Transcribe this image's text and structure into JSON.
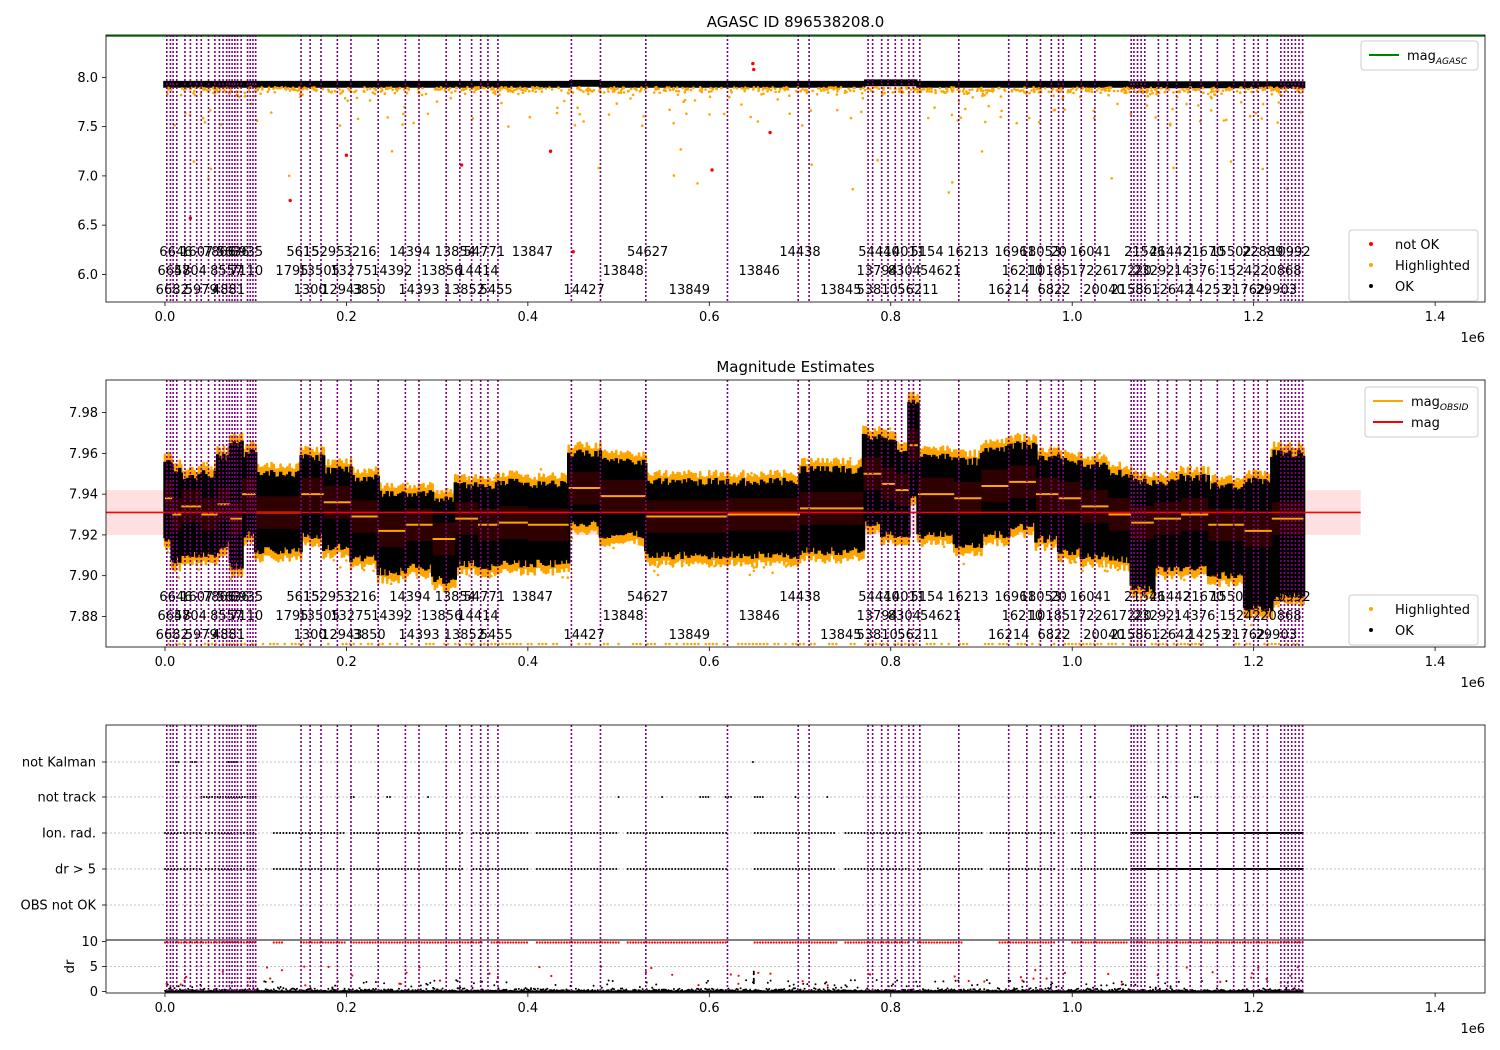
{
  "chart_data": [
    {
      "type": "scatter",
      "title": "AGASC ID 896538208.0",
      "xlim": [
        -65000,
        1455000
      ],
      "ylim": [
        5.72,
        8.43
      ],
      "x_ticks": [
        0.0,
        0.2,
        0.4,
        0.6,
        0.8,
        1.0,
        1.2,
        1.4
      ],
      "x_tick_labels": [
        "0.0",
        "0.2",
        "0.4",
        "0.6",
        "0.8",
        "1.0",
        "1.2",
        "1.4"
      ],
      "x_offset_text": "1e6",
      "y_ticks": [
        6.0,
        6.5,
        7.0,
        7.5,
        8.0
      ],
      "y_tick_labels": [
        "6.0",
        "6.5",
        "7.0",
        "7.5",
        "8.0"
      ],
      "legend_upper": {
        "placement": "top-right",
        "entries": [
          {
            "label": "mag",
            "sub": "AGASC",
            "color": "#008000"
          }
        ]
      },
      "legend_lower": {
        "placement": "bottom-right",
        "entries": [
          {
            "label": "not OK",
            "color": "#ff0000"
          },
          {
            "label": "Highlighted",
            "color": "#ffa500"
          },
          {
            "label": "OK",
            "color": "#000000"
          }
        ]
      },
      "series": [
        {
          "name": "mag_AGASC",
          "type": "line",
          "color": "#008000",
          "x": [
            -65000,
            1455000
          ],
          "y": [
            8.42,
            8.42
          ]
        },
        {
          "name": "OK",
          "type": "band",
          "color": "#000000",
          "x_range": [
            0,
            1255000
          ],
          "y_center": 7.93
        },
        {
          "name": "Highlighted",
          "color": "#ffa500",
          "x_range": [
            0,
            1255000
          ]
        },
        {
          "name": "not OK",
          "color": "#ff0000",
          "points": [
            [
              28000,
              6.57
            ],
            [
              138000,
              6.75
            ],
            [
              200000,
              7.21
            ],
            [
              327000,
              7.11
            ],
            [
              425000,
              7.25
            ],
            [
              450000,
              6.23
            ],
            [
              603000,
              7.06
            ],
            [
              648000,
              8.14
            ],
            [
              649000,
              8.08
            ],
            [
              667000,
              7.44
            ]
          ]
        }
      ]
    },
    {
      "type": "scatter",
      "title": "Magnitude Estimates",
      "xlim": [
        -65000,
        1455000
      ],
      "ylim": [
        7.865,
        7.996
      ],
      "x_ticks": [
        0.0,
        0.2,
        0.4,
        0.6,
        0.8,
        1.0,
        1.2,
        1.4
      ],
      "x_tick_labels": [
        "0.0",
        "0.2",
        "0.4",
        "0.6",
        "0.8",
        "1.0",
        "1.2",
        "1.4"
      ],
      "x_offset_text": "1e6",
      "y_ticks": [
        7.88,
        7.9,
        7.92,
        7.94,
        7.96,
        7.98
      ],
      "y_tick_labels": [
        "7.88",
        "7.90",
        "7.92",
        "7.94",
        "7.96",
        "7.98"
      ],
      "mag": 7.931,
      "mag_band": [
        7.92,
        7.942
      ],
      "legend_upper": {
        "placement": "top-right",
        "entries": [
          {
            "label": "mag",
            "sub": "OBSID",
            "color": "#ffa500"
          },
          {
            "label": "mag",
            "color": "#ff0000"
          }
        ]
      },
      "legend_lower": {
        "placement": "bottom-right",
        "entries": [
          {
            "label": "Highlighted",
            "color": "#ffa500"
          },
          {
            "label": "OK",
            "color": "#000000"
          }
        ]
      },
      "segments": [
        [
          0,
          8000,
          7.938,
          7.918,
          7.955
        ],
        [
          8000,
          18000,
          7.93,
          7.908,
          7.952
        ],
        [
          18000,
          40000,
          7.934,
          7.91,
          7.948
        ],
        [
          40000,
          58000,
          7.93,
          7.91,
          7.95
        ],
        [
          58000,
          72000,
          7.935,
          7.915,
          7.958
        ],
        [
          72000,
          85000,
          7.928,
          7.905,
          7.965
        ],
        [
          85000,
          100000,
          7.94,
          7.92,
          7.96
        ],
        [
          100000,
          150000,
          7.931,
          7.912,
          7.95
        ],
        [
          150000,
          175000,
          7.94,
          7.92,
          7.958
        ],
        [
          175000,
          205000,
          7.936,
          7.914,
          7.952
        ],
        [
          205000,
          235000,
          7.929,
          7.908,
          7.948
        ],
        [
          235000,
          265000,
          7.922,
          7.902,
          7.94
        ],
        [
          265000,
          295000,
          7.925,
          7.904,
          7.94
        ],
        [
          295000,
          320000,
          7.918,
          7.898,
          7.938
        ],
        [
          320000,
          345000,
          7.928,
          7.906,
          7.944
        ],
        [
          345000,
          368000,
          7.925,
          7.904,
          7.944
        ],
        [
          368000,
          400000,
          7.926,
          7.906,
          7.946
        ],
        [
          400000,
          445000,
          7.925,
          7.906,
          7.945
        ],
        [
          445000,
          480000,
          7.943,
          7.926,
          7.96
        ],
        [
          480000,
          530000,
          7.939,
          7.92,
          7.956
        ],
        [
          530000,
          620000,
          7.929,
          7.91,
          7.946
        ],
        [
          620000,
          700000,
          7.93,
          7.91,
          7.946
        ],
        [
          700000,
          770000,
          7.933,
          7.912,
          7.952
        ],
        [
          770000,
          790000,
          7.95,
          7.925,
          7.968
        ],
        [
          790000,
          805000,
          7.945,
          7.92,
          7.966
        ],
        [
          805000,
          820000,
          7.942,
          7.92,
          7.962
        ],
        [
          820000,
          830000,
          7.964,
          7.94,
          7.985
        ],
        [
          830000,
          870000,
          7.94,
          7.92,
          7.958
        ],
        [
          870000,
          900000,
          7.938,
          7.915,
          7.956
        ],
        [
          900000,
          930000,
          7.944,
          7.92,
          7.962
        ],
        [
          930000,
          960000,
          7.946,
          7.924,
          7.964
        ],
        [
          960000,
          985000,
          7.94,
          7.918,
          7.958
        ],
        [
          985000,
          1010000,
          7.938,
          7.912,
          7.956
        ],
        [
          1010000,
          1040000,
          7.934,
          7.91,
          7.954
        ],
        [
          1040000,
          1065000,
          7.93,
          7.908,
          7.95
        ],
        [
          1065000,
          1090000,
          7.926,
          7.894,
          7.946
        ],
        [
          1090000,
          1120000,
          7.928,
          7.904,
          7.946
        ],
        [
          1120000,
          1150000,
          7.93,
          7.904,
          7.948
        ],
        [
          1150000,
          1190000,
          7.925,
          7.9,
          7.944
        ],
        [
          1190000,
          1220000,
          7.922,
          7.884,
          7.946
        ],
        [
          1220000,
          1255000,
          7.928,
          7.89,
          7.96
        ]
      ]
    },
    {
      "type": "scatter",
      "title": "",
      "xlim": [
        -65000,
        1455000
      ],
      "x_ticks": [
        0.0,
        0.2,
        0.4,
        0.6,
        0.8,
        1.0,
        1.2,
        1.4
      ],
      "x_tick_labels": [
        "0.0",
        "0.2",
        "0.4",
        "0.6",
        "0.8",
        "1.0",
        "1.2",
        "1.4"
      ],
      "x_offset_text": "1e6",
      "flag_rows": [
        "not Kalman",
        "not track",
        "Ion. rad.",
        "dr > 5",
        "OBS not OK"
      ],
      "dr_ylabel": "dr",
      "dr_ylim": [
        -0.3,
        10.3
      ],
      "dr_ticks": [
        0,
        5,
        10
      ],
      "dr_tick_labels": [
        "0",
        "5",
        "10"
      ],
      "flag_clusters": {
        "not Kalman": [
          [
            12000,
            15000
          ],
          [
            30000,
            33000
          ],
          [
            70000,
            80000
          ],
          [
            648000,
            650000
          ]
        ],
        "not track": [
          [
            40000,
            100000
          ],
          [
            205000,
            210000
          ],
          [
            245000,
            248000
          ],
          [
            290000,
            292000
          ],
          [
            500000,
            502000
          ],
          [
            548000,
            550000
          ],
          [
            590000,
            600000
          ],
          [
            618000,
            625000
          ],
          [
            650000,
            660000
          ],
          [
            695000,
            697000
          ],
          [
            730000,
            732000
          ],
          [
            1020000,
            1022000
          ],
          [
            1100000,
            1105000
          ],
          [
            1135000,
            1140000
          ]
        ],
        "Ion. rad.": [
          [
            0,
            40000
          ],
          [
            45000,
            100000
          ],
          [
            120000,
            200000
          ],
          [
            205000,
            330000
          ],
          [
            340000,
            400000
          ],
          [
            410000,
            500000
          ],
          [
            510000,
            620000
          ],
          [
            650000,
            740000
          ],
          [
            750000,
            820000
          ],
          [
            830000,
            900000
          ],
          [
            910000,
            980000
          ],
          [
            1000000,
            1060000
          ],
          [
            1065000,
            1255000
          ]
        ],
        "dr > 5": [
          [
            0,
            40000
          ],
          [
            45000,
            100000
          ],
          [
            120000,
            200000
          ],
          [
            205000,
            330000
          ],
          [
            340000,
            400000
          ],
          [
            410000,
            500000
          ],
          [
            510000,
            620000
          ],
          [
            650000,
            740000
          ],
          [
            750000,
            820000
          ],
          [
            830000,
            900000
          ],
          [
            910000,
            980000
          ],
          [
            1000000,
            1060000
          ],
          [
            1065000,
            1255000
          ]
        ]
      },
      "dr10_clusters": [
        [
          0,
          100000
        ],
        [
          120000,
          130000
        ],
        [
          150000,
          200000
        ],
        [
          205000,
          350000
        ],
        [
          360000,
          400000
        ],
        [
          410000,
          500000
        ],
        [
          510000,
          620000
        ],
        [
          650000,
          740000
        ],
        [
          750000,
          820000
        ],
        [
          830000,
          880000
        ],
        [
          920000,
          980000
        ],
        [
          1000000,
          1060000
        ],
        [
          1065000,
          1255000
        ]
      ]
    }
  ],
  "obsid_lines": [
    2000,
    6000,
    9000,
    13000,
    22000,
    28000,
    35000,
    40000,
    48000,
    55000,
    60000,
    64000,
    68000,
    71000,
    74000,
    77000,
    80000,
    84000,
    91000,
    94000,
    97000,
    100000,
    150000,
    160000,
    172000,
    190000,
    205000,
    235000,
    265000,
    280000,
    310000,
    325000,
    338000,
    348000,
    356000,
    367000,
    448000,
    480000,
    530000,
    620000,
    698000,
    710000,
    775000,
    780000,
    790000,
    797000,
    805000,
    812000,
    820000,
    825000,
    832000,
    875000,
    930000,
    950000,
    965000,
    977000,
    985000,
    990000,
    1010000,
    1025000,
    1065000,
    1068000,
    1072000,
    1076000,
    1080000,
    1095000,
    1105000,
    1115000,
    1130000,
    1142000,
    1160000,
    1178000,
    1190000,
    1200000,
    1205000,
    1215000,
    1230000,
    1234000,
    1238000,
    1242000,
    1246000,
    1250000,
    1254000
  ],
  "obsid_labels": [
    [
      "6646",
      12000,
      0
    ],
    [
      "1607",
      35000,
      0
    ],
    [
      "7866",
      60000,
      0
    ],
    [
      "5636",
      75000,
      0
    ],
    [
      "6935",
      90000,
      0
    ],
    [
      "5615",
      152000,
      0
    ],
    [
      "15295",
      175000,
      0
    ],
    [
      "3216",
      215000,
      0
    ],
    [
      "14394",
      270000,
      0
    ],
    [
      "13854",
      320000,
      0
    ],
    [
      "54771",
      352000,
      0
    ],
    [
      "13847",
      405000,
      0
    ],
    [
      "54627",
      532000,
      0
    ],
    [
      "14438",
      700000,
      0
    ],
    [
      "54440",
      787000,
      0
    ],
    [
      "14011",
      815000,
      0
    ],
    [
      "5154",
      840000,
      0
    ],
    [
      "16213",
      885000,
      0
    ],
    [
      "16961",
      937000,
      0
    ],
    [
      "18053",
      965000,
      0
    ],
    [
      "20",
      985000,
      0
    ],
    [
      "16041",
      1020000,
      0
    ],
    [
      "21546",
      1080000,
      0
    ],
    [
      "21442",
      1108000,
      0
    ],
    [
      "21670",
      1145000,
      0
    ],
    [
      "15502",
      1175000,
      0
    ],
    [
      "22889",
      1210000,
      0
    ],
    [
      "10992",
      1240000,
      0
    ],
    [
      "6658",
      10000,
      1
    ],
    [
      "4704",
      28000,
      1
    ],
    [
      "8557",
      68000,
      1
    ],
    [
      "7110",
      90000,
      1
    ],
    [
      "1795",
      140000,
      1
    ],
    [
      "13505",
      170000,
      1
    ],
    [
      "13275",
      205000,
      1
    ],
    [
      "14392",
      250000,
      1
    ],
    [
      "13856",
      305000,
      1
    ],
    [
      "14414",
      345000,
      1
    ],
    [
      "13848",
      505000,
      1
    ],
    [
      "13846",
      655000,
      1
    ],
    [
      "13794",
      785000,
      1
    ],
    [
      "8304",
      815000,
      1
    ],
    [
      "54621",
      855000,
      1
    ],
    [
      "16210",
      945000,
      1
    ],
    [
      "10185",
      975000,
      1
    ],
    [
      "17226",
      1020000,
      1
    ],
    [
      "17220",
      1065000,
      1
    ],
    [
      "23292",
      1090000,
      1
    ],
    [
      "14376",
      1135000,
      1
    ],
    [
      "15242",
      1185000,
      1
    ],
    [
      "20868",
      1230000,
      1
    ],
    [
      "6682",
      8000,
      2
    ],
    [
      "5979",
      40000,
      2
    ],
    [
      "4881",
      70000,
      2
    ],
    [
      "1300",
      160000,
      2
    ],
    [
      "12943",
      195000,
      2
    ],
    [
      "3850",
      225000,
      2
    ],
    [
      "14393",
      280000,
      2
    ],
    [
      "13852",
      330000,
      2
    ],
    [
      "5455",
      365000,
      2
    ],
    [
      "14427",
      462000,
      2
    ],
    [
      "13849",
      578000,
      2
    ],
    [
      "13845",
      745000,
      2
    ],
    [
      "53810",
      785000,
      2
    ],
    [
      "56211",
      830000,
      2
    ],
    [
      "16214",
      930000,
      2
    ],
    [
      "6822",
      980000,
      2
    ],
    [
      "20040",
      1035000,
      2
    ],
    [
      "21586",
      1065000,
      2
    ],
    [
      "12642",
      1110000,
      2
    ],
    [
      "14253",
      1150000,
      2
    ],
    [
      "21762",
      1190000,
      2
    ],
    [
      "29903",
      1225000,
      2
    ]
  ]
}
